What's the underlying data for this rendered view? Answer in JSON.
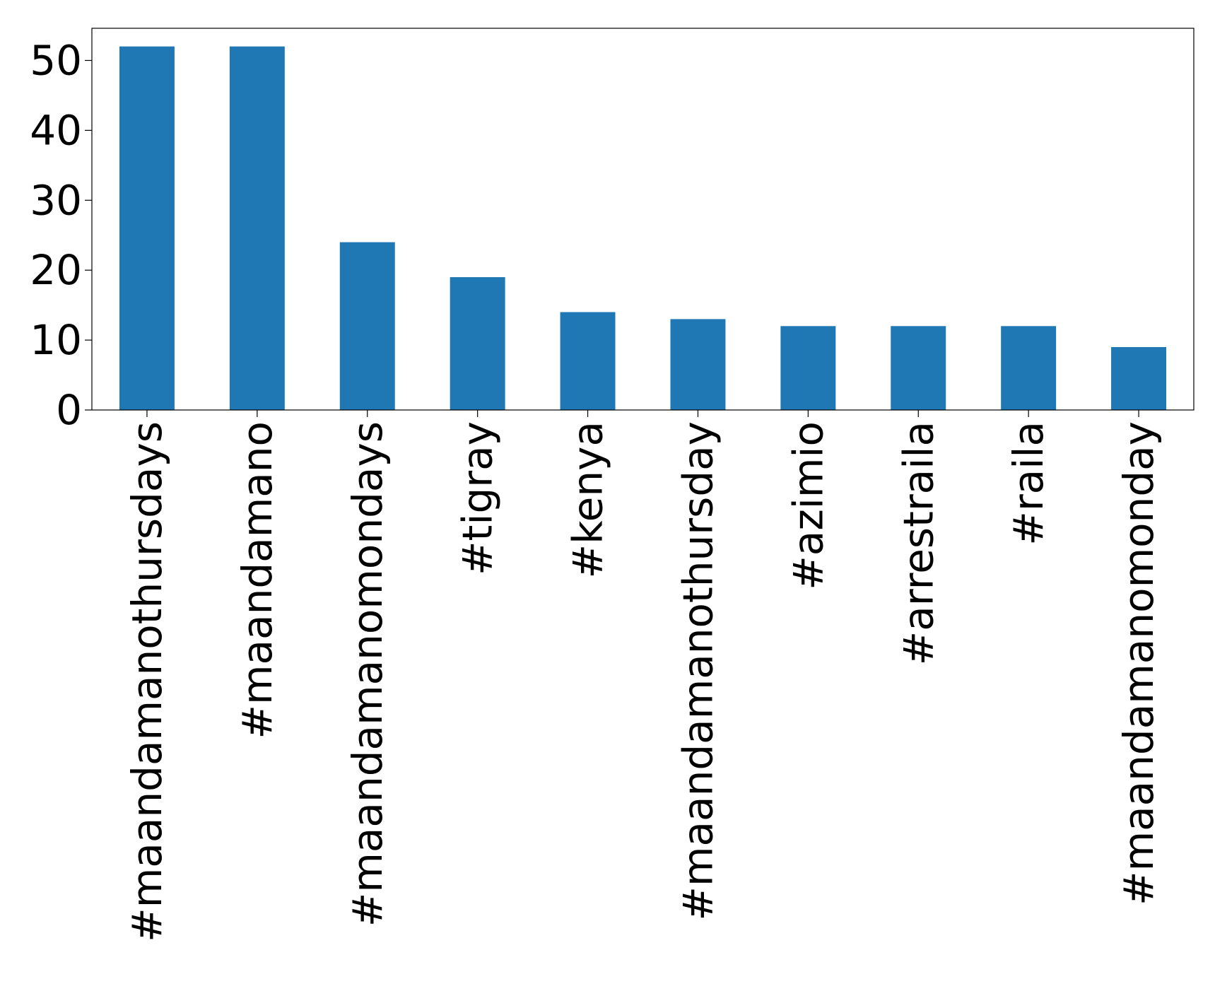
{
  "chart_data": {
    "type": "bar",
    "title": "",
    "xlabel": "",
    "ylabel": "",
    "categories": [
      "#maandamanothursdays",
      "#maandamano",
      "#maandamanomondays",
      "#tigray",
      "#kenya",
      "#maandamanothursday",
      "#azimio",
      "#arrestraila",
      "#raila",
      "#maandamanomonday"
    ],
    "values": [
      52,
      52,
      24,
      19,
      14,
      13,
      12,
      12,
      12,
      9
    ],
    "ylim": [
      0,
      54.6
    ],
    "yticks": [
      0,
      10,
      20,
      30,
      40,
      50
    ],
    "grid": false,
    "legend": "none",
    "colors": {
      "bar": "#1f77b4",
      "axis": "#000000",
      "background": "#ffffff"
    }
  }
}
